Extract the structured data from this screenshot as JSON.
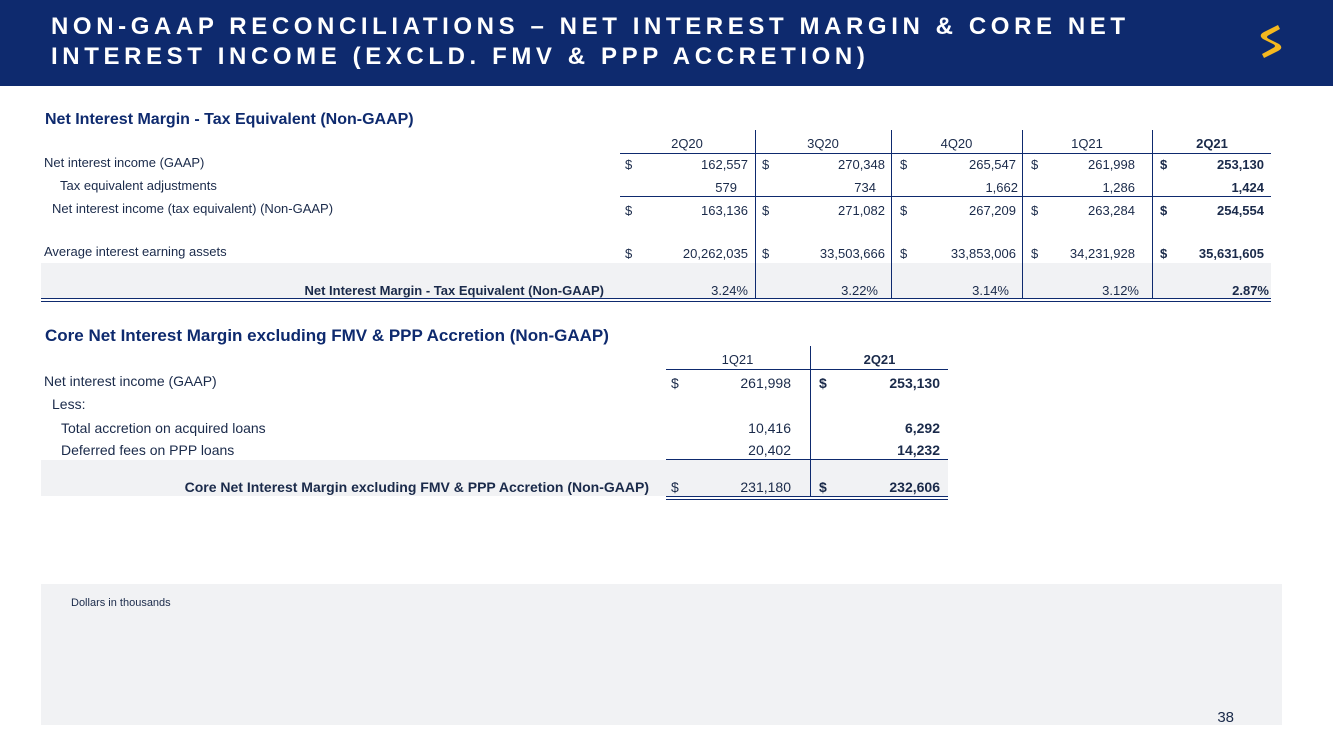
{
  "header": {
    "title": "NON-GAAP RECONCILIATIONS – NET INTEREST MARGIN & CORE NET INTEREST INCOME (EXCLD. FMV & PPP ACCRETION)",
    "brand_color": "#0e2a6e",
    "logo_color": "#f5b81f"
  },
  "table1": {
    "title": "Net Interest Margin - Tax Equivalent (Non-GAAP)",
    "columns": [
      "2Q20",
      "3Q20",
      "4Q20",
      "1Q21",
      "2Q21"
    ],
    "currency": "$",
    "rows": [
      {
        "label": "Net interest income (GAAP)",
        "values": [
          "162,557",
          "270,348",
          "265,547",
          "261,998",
          "253,130"
        ]
      },
      {
        "label": "Tax equivalent adjustments",
        "values": [
          "579",
          "734",
          "1,662",
          "1,286",
          "1,424"
        ]
      },
      {
        "label": "Net interest income (tax equivalent) (Non-GAAP)",
        "values": [
          "163,136",
          "271,082",
          "267,209",
          "263,284",
          "254,554"
        ]
      },
      {
        "label": "Average interest earning assets",
        "values": [
          "20,262,035",
          "33,503,666",
          "33,853,006",
          "34,231,928",
          "35,631,605"
        ]
      }
    ],
    "total": {
      "label": "Net Interest Margin - Tax Equivalent (Non-GAAP)",
      "values": [
        "3.24%",
        "3.22%",
        "3.14%",
        "3.12%",
        "2.87%"
      ]
    }
  },
  "table2": {
    "title": "Core Net Interest Margin excluding FMV & PPP Accretion (Non-GAAP)",
    "columns": [
      "1Q21",
      "2Q21"
    ],
    "currency": "$",
    "rows": [
      {
        "label": "Net interest income (GAAP)",
        "values": [
          "261,998",
          "253,130"
        ]
      },
      {
        "label": "Less:",
        "values": [
          "",
          ""
        ]
      },
      {
        "label": "Total accretion on acquired loans",
        "values": [
          "10,416",
          "6,292"
        ]
      },
      {
        "label": "Deferred fees on PPP loans",
        "values": [
          "20,402",
          "14,232"
        ]
      }
    ],
    "total": {
      "label": "Core Net Interest Margin excluding FMV & PPP Accretion (Non-GAAP)",
      "values": [
        "231,180",
        "232,606"
      ]
    }
  },
  "footer": {
    "note": "Dollars in thousands",
    "page_number": "38"
  }
}
